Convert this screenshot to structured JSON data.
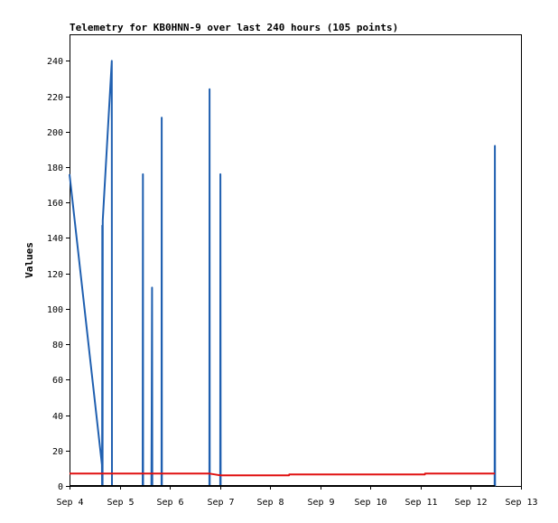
{
  "chart_data": {
    "type": "line",
    "title": "Telemetry for KB0HNN-9 over last 240 hours (105 points)",
    "xlabel": "",
    "ylabel": "Values",
    "xlim_hours": [
      0,
      216
    ],
    "ylim": [
      0,
      255
    ],
    "x_ticks": [
      {
        "label": "Sep 4",
        "hours": 0
      },
      {
        "label": "Sep 5",
        "hours": 24
      },
      {
        "label": "Sep 6",
        "hours": 48
      },
      {
        "label": "Sep 7",
        "hours": 72
      },
      {
        "label": "Sep 8",
        "hours": 96
      },
      {
        "label": "Sep 9",
        "hours": 120
      },
      {
        "label": "Sep 10",
        "hours": 144
      },
      {
        "label": "Sep 11",
        "hours": 168
      },
      {
        "label": "Sep 12",
        "hours": 192
      },
      {
        "label": "Sep 13",
        "hours": 216
      }
    ],
    "y_ticks": [
      0,
      20,
      40,
      60,
      80,
      100,
      120,
      140,
      160,
      180,
      200,
      220,
      240
    ],
    "grid": false,
    "legend": "none",
    "series": [
      {
        "color": "#1f5fb0",
        "points": [
          [
            0.0,
            176
          ],
          [
            15.5,
            12
          ],
          [
            15.6,
            0
          ],
          [
            15.7,
            147
          ],
          [
            15.8,
            0
          ],
          [
            15.9,
            150
          ],
          [
            20.2,
            240
          ],
          [
            20.3,
            0
          ],
          [
            35.0,
            0
          ],
          [
            35.1,
            176
          ],
          [
            35.2,
            0
          ],
          [
            39.2,
            0
          ],
          [
            39.3,
            40
          ],
          [
            39.5,
            112
          ],
          [
            39.6,
            0
          ],
          [
            44.0,
            0
          ],
          [
            44.1,
            208
          ],
          [
            44.2,
            0
          ],
          [
            66.9,
            0
          ],
          [
            67.0,
            224
          ],
          [
            67.1,
            0
          ],
          [
            72.1,
            0
          ],
          [
            72.2,
            176
          ],
          [
            72.3,
            0
          ],
          [
            203.4,
            0
          ],
          [
            203.5,
            192
          ],
          [
            203.6,
            0
          ]
        ]
      },
      {
        "color": "#e01010",
        "points": [
          [
            0.0,
            7
          ],
          [
            67.0,
            7
          ],
          [
            72.0,
            6
          ],
          [
            105.0,
            6
          ],
          [
            105.1,
            6.5
          ],
          [
            170.0,
            6.5
          ],
          [
            170.1,
            7
          ],
          [
            203.5,
            7
          ]
        ]
      },
      {
        "color": "#000000",
        "points": [
          [
            0.0,
            0
          ],
          [
            203.5,
            0
          ]
        ]
      }
    ]
  }
}
